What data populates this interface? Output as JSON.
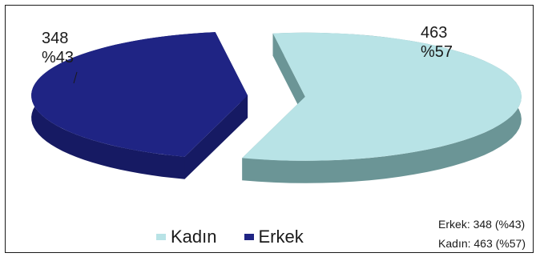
{
  "chart_data": {
    "type": "pie",
    "title": "",
    "slices": [
      {
        "name": "Kadın",
        "value": 463,
        "percent_label": "%57",
        "color": "#b8e3e6",
        "side_color": "#6b9596"
      },
      {
        "name": "Erkek",
        "value": 348,
        "percent_label": "%43",
        "color": "#1f2484",
        "side_color": "#161a63"
      }
    ],
    "legend": {
      "placement": "bottom",
      "items": [
        {
          "label": "Kadın",
          "color": "#b8e3e6"
        },
        {
          "label": "Erkek",
          "color": "#1f2484"
        }
      ]
    },
    "data_labels": {
      "kadin": {
        "value": "463",
        "percent": "%57"
      },
      "erkek": {
        "value": "348",
        "percent": "%43"
      }
    },
    "summary_lines": [
      "Erkek: 348 (%43)",
      "Kadın: 463 (%57)"
    ]
  }
}
